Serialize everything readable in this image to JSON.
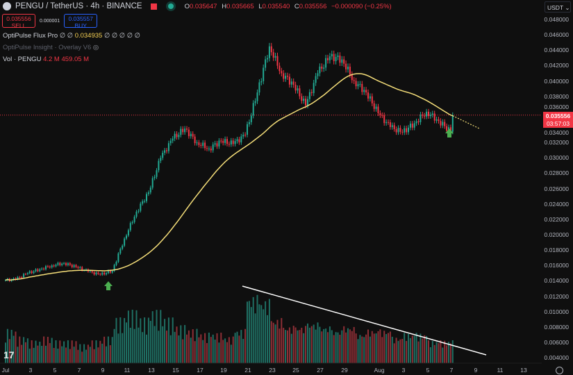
{
  "header": {
    "symbol": "PENGU / TetherUS · 4h · BINANCE",
    "ohlc": {
      "o_label": "O",
      "o": "0.035647",
      "h_label": "H",
      "h": "0.035665",
      "l_label": "L",
      "l": "0.035540",
      "c_label": "C",
      "c": "0.035556",
      "change": "−0.000090 (−0.25%)"
    }
  },
  "trade": {
    "sell_price": "0.035556",
    "sell_label": "SELL",
    "spread": "0.000001",
    "buy_price": "0.035557",
    "buy_label": "BUY"
  },
  "indicators": [
    {
      "name": "OptiPulse Flux Pro",
      "values_pre": "∅ ∅",
      "value": "0.034935",
      "values_post": "∅ ∅ ∅ ∅ ∅"
    },
    {
      "name": "OptiPulse Insight · Overlay V6",
      "hidden": true
    },
    {
      "name": "Vol · PENGU",
      "v1": "4.2 M",
      "v2": "459.05 M"
    }
  ],
  "axis": {
    "currency": "USDT",
    "y_ticks": [
      "0.048000",
      "0.046000",
      "0.044000",
      "0.042000",
      "0.040000",
      "0.038000",
      "0.036000",
      "0.034000",
      "0.032000",
      "0.030000",
      "0.028000",
      "0.026000",
      "0.024000",
      "0.022000",
      "0.020000",
      "0.018000",
      "0.016000",
      "0.014000",
      "0.012000",
      "0.010000",
      "0.008000",
      "0.006000",
      "0.004000"
    ],
    "x_ticks": [
      "Jul",
      "3",
      "5",
      "7",
      "9",
      "11",
      "13",
      "15",
      "17",
      "19",
      "21",
      "23",
      "25",
      "27",
      "29",
      "Aug",
      "3",
      "5",
      "7",
      "9",
      "11",
      "13"
    ],
    "last_price": "0.035556",
    "countdown": "03:57:03"
  },
  "colors": {
    "up": "#22ab94",
    "down": "#f23645",
    "ma": "#f7e07a",
    "trendline": "#ffffff",
    "signal_arrow": "#4caf50"
  },
  "chart_data": {
    "type": "candlestick",
    "interval": "4h",
    "ylim": [
      0.003,
      0.0495
    ],
    "daily_dates": [
      "Jul 1",
      "Jul 2",
      "Jul 3",
      "Jul 4",
      "Jul 5",
      "Jul 6",
      "Jul 7",
      "Jul 8",
      "Jul 9",
      "Jul 10",
      "Jul 11",
      "Jul 12",
      "Jul 13",
      "Jul 14",
      "Jul 15",
      "Jul 16",
      "Jul 17",
      "Jul 18",
      "Jul 19",
      "Jul 20",
      "Jul 21",
      "Jul 22",
      "Jul 23",
      "Jul 24",
      "Jul 25",
      "Jul 26",
      "Jul 27",
      "Jul 28",
      "Jul 29",
      "Jul 30",
      "Jul 31",
      "Aug 1",
      "Aug 2",
      "Aug 3",
      "Aug 4",
      "Aug 5",
      "Aug 6"
    ],
    "daily_close": [
      0.0142,
      0.015,
      0.0155,
      0.016,
      0.0163,
      0.0158,
      0.0152,
      0.0148,
      0.0153,
      0.0195,
      0.023,
      0.0255,
      0.03,
      0.0325,
      0.0338,
      0.032,
      0.0312,
      0.0322,
      0.0318,
      0.033,
      0.0385,
      0.0445,
      0.041,
      0.0395,
      0.0368,
      0.041,
      0.0432,
      0.0428,
      0.04,
      0.0385,
      0.0358,
      0.034,
      0.0333,
      0.0345,
      0.036,
      0.0348,
      0.0334
    ],
    "last_close": 0.035556,
    "volume_relative": [
      0.45,
      0.35,
      0.3,
      0.35,
      0.3,
      0.3,
      0.25,
      0.3,
      0.35,
      0.6,
      0.7,
      0.6,
      0.7,
      0.6,
      0.5,
      0.45,
      0.4,
      0.4,
      0.35,
      0.45,
      0.9,
      0.85,
      0.6,
      0.5,
      0.5,
      0.55,
      0.5,
      0.45,
      0.5,
      0.4,
      0.45,
      0.45,
      0.35,
      0.4,
      0.4,
      0.3,
      0.3
    ]
  }
}
